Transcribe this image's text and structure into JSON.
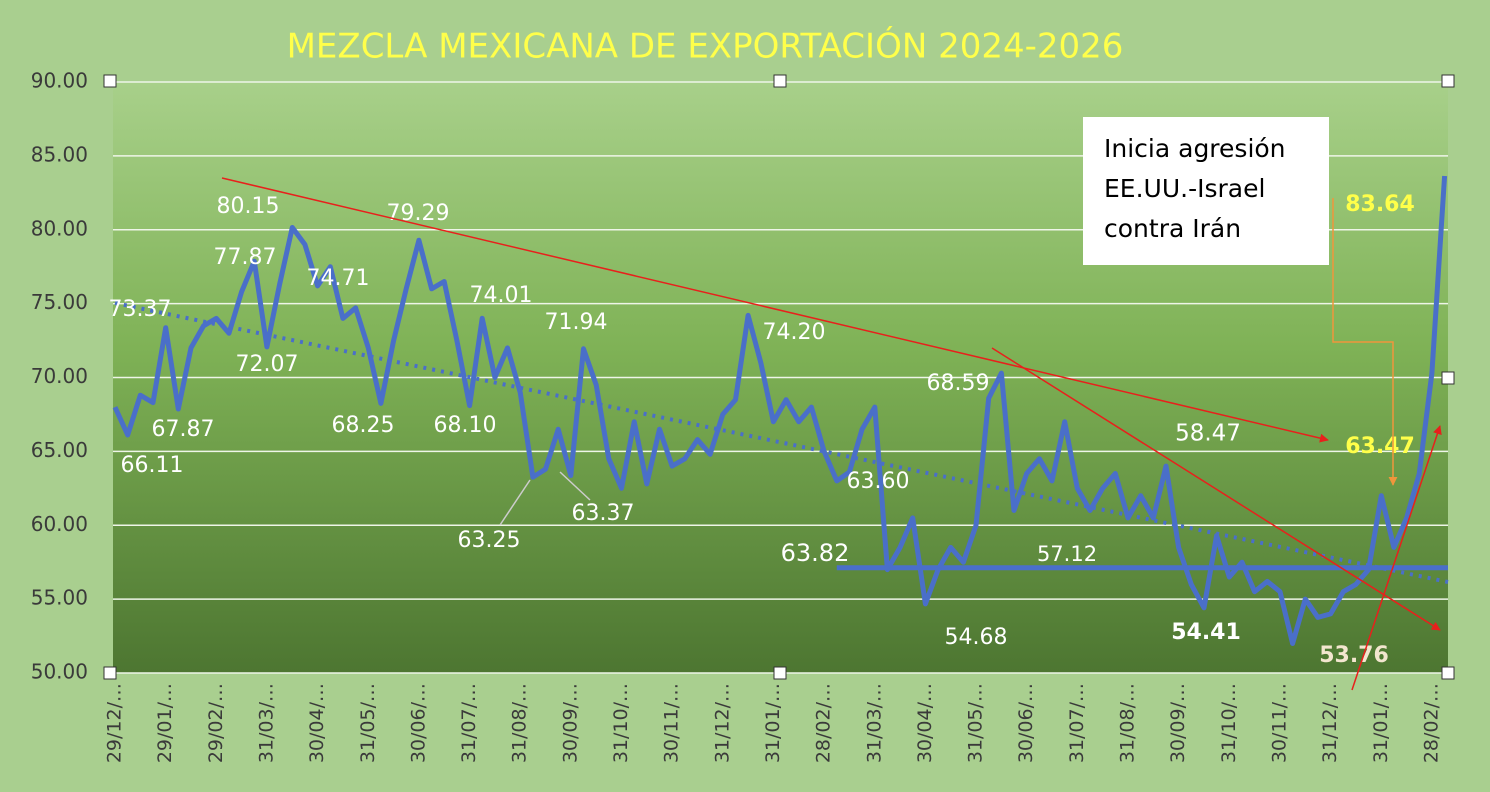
{
  "chart_data": {
    "type": "line",
    "title": "MEZCLA MEXICANA DE EXPORTACIÓN 2024-2026",
    "categories": [
      "29/12/…",
      null,
      null,
      null,
      "29/01/…",
      null,
      null,
      null,
      "29/02/…",
      null,
      null,
      null,
      "31/03/…",
      null,
      null,
      null,
      "30/04/…",
      null,
      null,
      null,
      "31/05/…",
      null,
      null,
      null,
      "30/06/…",
      null,
      null,
      null,
      "31/07/…",
      null,
      null,
      null,
      "31/08/…",
      null,
      null,
      null,
      "30/09/…",
      null,
      null,
      null,
      "31/10/…",
      null,
      null,
      null,
      "30/11/…",
      null,
      null,
      null,
      "31/12/…",
      null,
      null,
      null,
      "31/01/…",
      null,
      null,
      null,
      "28/02/…",
      null,
      null,
      null,
      "31/03/…",
      null,
      null,
      null,
      "30/04/…",
      null,
      null,
      null,
      "31/05/…",
      null,
      null,
      null,
      "30/06/…",
      null,
      null,
      null,
      "31/07/…",
      null,
      null,
      null,
      "31/08/…",
      null,
      null,
      null,
      "30/09/…",
      null,
      null,
      null,
      "31/10/…",
      null,
      null,
      null,
      "30/11/…",
      null,
      null,
      null,
      "31/12/…",
      null,
      null,
      null,
      "31/01/…",
      null,
      null,
      null,
      "28/02/…",
      null
    ],
    "series": [
      {
        "color": "#4a6fc9",
        "values": [
          68.0,
          66.11,
          68.8,
          68.3,
          73.37,
          67.87,
          72.0,
          73.5,
          74.0,
          73.0,
          75.8,
          77.87,
          72.07,
          76.3,
          80.15,
          79.0,
          76.2,
          77.5,
          74.0,
          74.71,
          72.0,
          68.25,
          72.5,
          76.0,
          79.29,
          76.0,
          76.5,
          72.5,
          68.1,
          74.01,
          70.0,
          72.0,
          69.0,
          63.25,
          63.8,
          66.5,
          63.37,
          71.94,
          69.5,
          64.5,
          62.5,
          67.0,
          62.8,
          66.5,
          64.0,
          64.5,
          65.8,
          64.8,
          67.5,
          68.5,
          74.2,
          71.0,
          67.0,
          68.5,
          67.0,
          68.0,
          65.0,
          63.0,
          63.6,
          66.5,
          68.0,
          57.0,
          58.5,
          60.5,
          54.68,
          57.0,
          58.5,
          57.5,
          60.0,
          68.59,
          70.3,
          61.0,
          63.5,
          64.5,
          63.0,
          67.0,
          62.5,
          61.0,
          62.5,
          63.5,
          60.5,
          62.0,
          60.5,
          64.0,
          58.5,
          56.0,
          54.41,
          59.3,
          56.5,
          57.5,
          55.5,
          56.2,
          55.5,
          52.0,
          55.0,
          53.76,
          54.0,
          55.5,
          56.0,
          57.0,
          62.0,
          58.5,
          60.5,
          63.47,
          70.3,
          83.64
        ],
        "value_labels": [
          null,
          "66.11",
          null,
          null,
          "73.37",
          "67.87",
          null,
          null,
          null,
          null,
          null,
          "77.87",
          "72.07",
          null,
          "80.15",
          null,
          null,
          null,
          null,
          "74.71",
          null,
          "68.25",
          null,
          null,
          "79.29",
          null,
          null,
          null,
          "68.10",
          "74.01",
          null,
          null,
          null,
          "63.25",
          null,
          null,
          "63.37",
          "71.94",
          null,
          null,
          null,
          null,
          null,
          null,
          null,
          null,
          null,
          null,
          null,
          null,
          "74.20",
          null,
          null,
          null,
          null,
          null,
          null,
          null,
          "63.60",
          null,
          null,
          null,
          null,
          null,
          "54.68",
          null,
          null,
          null,
          null,
          "68.59",
          null,
          null,
          null,
          null,
          null,
          null,
          null,
          null,
          null,
          null,
          null,
          null,
          null,
          null,
          null,
          null,
          "54.41",
          null,
          null,
          null,
          null,
          null,
          null,
          null,
          null,
          "53.76",
          null,
          null,
          null,
          null,
          null,
          null,
          null,
          "63.47",
          null,
          "83.64"
        ]
      }
    ],
    "reference_line": {
      "value": 57.12,
      "label": "57.12"
    },
    "annotations": [
      "63.82",
      "58.47"
    ],
    "callout": [
      "Inicia agresión",
      "EE.UU.-Israel",
      "contra Irán"
    ],
    "ylim": [
      50,
      90
    ],
    "yticks": [
      {
        "value": 50,
        "label": "50.00"
      },
      {
        "value": 55,
        "label": "55.00"
      },
      {
        "value": 60,
        "label": "60.00"
      },
      {
        "value": 65,
        "label": "65.00"
      },
      {
        "value": 70,
        "label": "70.00"
      },
      {
        "value": 75,
        "label": "75.00"
      },
      {
        "value": 80,
        "label": "80.00"
      },
      {
        "value": 85,
        "label": "85.00"
      },
      {
        "value": 90,
        "label": "90.00"
      }
    ],
    "grid": true
  }
}
